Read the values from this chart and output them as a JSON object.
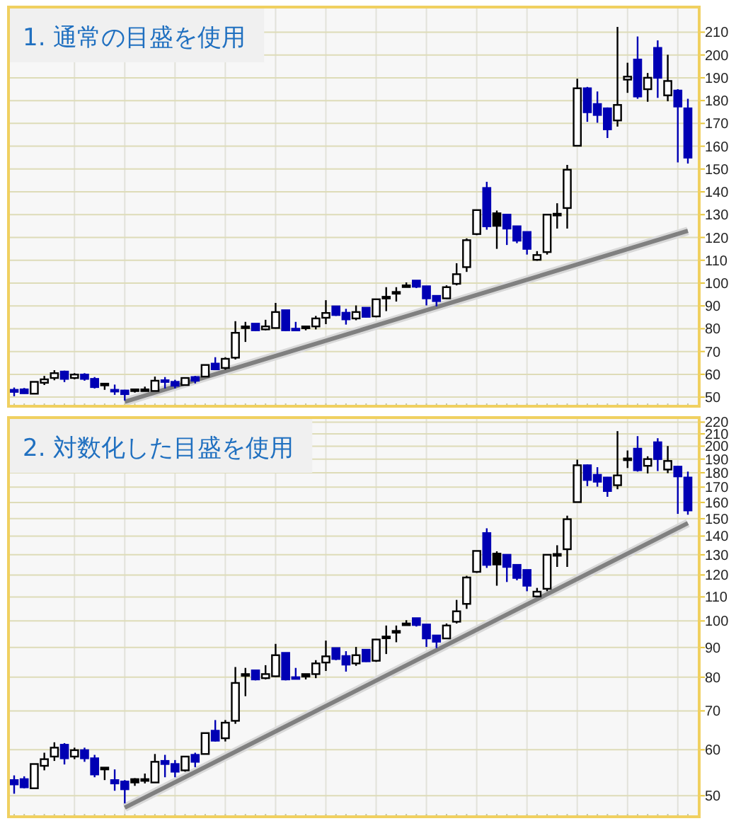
{
  "chart_data": [
    {
      "type": "candlestick",
      "title": "1. 通常の目盛を使用",
      "categories": [
        null,
        null,
        null,
        null,
        null,
        null,
        null,
        null,
        null,
        null,
        null,
        null,
        null,
        null,
        null,
        null,
        null,
        null,
        null,
        null,
        null,
        null,
        null,
        null,
        null,
        null,
        null,
        null,
        null,
        null,
        null,
        null,
        null,
        null,
        null,
        null,
        null,
        null,
        null,
        null,
        null,
        null,
        null,
        null,
        null,
        null,
        null,
        null,
        null,
        null,
        null,
        null,
        null,
        null,
        null,
        null,
        null,
        null,
        null,
        null,
        null,
        null,
        null,
        null,
        null,
        null,
        null,
        null
      ],
      "ohlc": [
        [
          53.2,
          54.2,
          50.4,
          52.3
        ],
        [
          53.4,
          54,
          51.5,
          51.7
        ],
        [
          51.5,
          56.7,
          51.5,
          56.7
        ],
        [
          56.3,
          59.3,
          55.3,
          57.8
        ],
        [
          58.4,
          61.8,
          57.4,
          60.5
        ],
        [
          61.2,
          61.6,
          56.6,
          58
        ],
        [
          58.4,
          60.5,
          57.8,
          59.9
        ],
        [
          59.9,
          60.5,
          57.2,
          58
        ],
        [
          58,
          58.8,
          53.8,
          54.4
        ],
        [
          55.9,
          55.9,
          53.2,
          55.5
        ],
        [
          53.2,
          55.5,
          51,
          52.5
        ],
        [
          52.9,
          53.2,
          48.5,
          51.3
        ],
        [
          53.4,
          53.6,
          52,
          52.7
        ],
        [
          53.4,
          54.6,
          52.5,
          53.2
        ],
        [
          52.7,
          59,
          52.7,
          57.2
        ],
        [
          57.4,
          58.8,
          53.8,
          56.7
        ],
        [
          56.7,
          57.6,
          53.8,
          55
        ],
        [
          55.3,
          58.4,
          55,
          58.4
        ],
        [
          58.8,
          59.3,
          56,
          57.2
        ],
        [
          59,
          64.1,
          59,
          64.1
        ],
        [
          64.7,
          67.5,
          62,
          62.2
        ],
        [
          62.8,
          67.5,
          62,
          66.8
        ],
        [
          67.3,
          83.3,
          66.5,
          78.2
        ],
        [
          81,
          83,
          74.2,
          80.8
        ],
        [
          82.2,
          82.2,
          79,
          79.3
        ],
        [
          79.7,
          83.9,
          79.3,
          81
        ],
        [
          80.3,
          91.3,
          80,
          87.3
        ],
        [
          88.1,
          88.1,
          79,
          79.3
        ],
        [
          80,
          83,
          79.3,
          79.5
        ],
        [
          81,
          81,
          79.3,
          80.2
        ],
        [
          81,
          85.6,
          79.7,
          84.5
        ],
        [
          84.8,
          92.5,
          82,
          86.9
        ],
        [
          89.8,
          89.8,
          85.6,
          86
        ],
        [
          87,
          88.7,
          81.8,
          84.1
        ],
        [
          84.5,
          90.2,
          83.7,
          87.3
        ],
        [
          89.2,
          89.2,
          85,
          85.2
        ],
        [
          85.4,
          93.1,
          85,
          92.9
        ],
        [
          94,
          98.2,
          87.7,
          94
        ],
        [
          96.1,
          98.2,
          91.9,
          96.1
        ],
        [
          99,
          100.3,
          98.4,
          98.6
        ],
        [
          101.1,
          101.1,
          97.8,
          98.4
        ],
        [
          98.6,
          98.6,
          90.2,
          93.3
        ],
        [
          94.4,
          94.6,
          89.8,
          92.1
        ],
        [
          93.3,
          99,
          93.1,
          98.2
        ],
        [
          99.7,
          108.7,
          99,
          103.9
        ],
        [
          107,
          119.6,
          104.9,
          118.8
        ],
        [
          121.5,
          132,
          121,
          132
        ],
        [
          141.7,
          144.4,
          123.4,
          124.9
        ],
        [
          130.6,
          131.8,
          115,
          125.1
        ],
        [
          130,
          130,
          116.7,
          123.9
        ],
        [
          124.9,
          124.9,
          117.5,
          118.6
        ],
        [
          122.4,
          122.4,
          112.5,
          115
        ],
        [
          110.2,
          114,
          109.8,
          112.3
        ],
        [
          113.6,
          130,
          112.5,
          130
        ],
        [
          130.4,
          135,
          123.9,
          130.4
        ],
        [
          132.9,
          151.8,
          123.9,
          149.7
        ],
        [
          160.2,
          189.6,
          160.2,
          185.4
        ],
        [
          185.4,
          186,
          170.7,
          174.9
        ],
        [
          178.5,
          184,
          170.3,
          173.7
        ],
        [
          176.6,
          177,
          163.6,
          167.4
        ],
        [
          171.3,
          212.3,
          168.6,
          178.1
        ],
        [
          189.2,
          196.6,
          183.4,
          190.5
        ],
        [
          198,
          208.1,
          180.8,
          181.8
        ],
        [
          185,
          192.1,
          179.5,
          190
        ],
        [
          203.1,
          206.4,
          181.2,
          190
        ],
        [
          182.3,
          200.1,
          179.7,
          188.6
        ],
        [
          184.4,
          185,
          152.9,
          177.4
        ],
        [
          176.6,
          180.8,
          152.4,
          155
        ]
      ],
      "colors": [
        "#0000b4",
        "#0000b4",
        "#ffffff",
        "#ffffff",
        "#ffffff",
        "#0000b4",
        "#ffffff",
        "#0000b4",
        "#0000b4",
        "#000000",
        "#0000b4",
        "#0000b4",
        "#000000",
        "#000000",
        "#ffffff",
        "#0000b4",
        "#0000b4",
        "#ffffff",
        "#0000b4",
        "#ffffff",
        "#0000b4",
        "#ffffff",
        "#ffffff",
        "#000000",
        "#0000b4",
        "#ffffff",
        "#ffffff",
        "#0000b4",
        "#0000b4",
        "#000000",
        "#ffffff",
        "#ffffff",
        "#0000b4",
        "#0000b4",
        "#ffffff",
        "#0000b4",
        "#ffffff",
        "#000000",
        "#000000",
        "#000000",
        "#0000b4",
        "#0000b4",
        "#0000b4",
        "#ffffff",
        "#ffffff",
        "#ffffff",
        "#ffffff",
        "#0000b4",
        "#000000",
        "#0000b4",
        "#0000b4",
        "#0000b4",
        "#ffffff",
        "#ffffff",
        "#000000",
        "#ffffff",
        "#ffffff",
        "#0000b4",
        "#0000b4",
        "#0000b4",
        "#ffffff",
        "#ffffff",
        "#0000b4",
        "#ffffff",
        "#0000b4",
        "#ffffff",
        "#0000b4",
        "#0000b4"
      ],
      "series": [
        {
          "type": "line",
          "values": [
            null,
            null,
            null,
            null,
            null,
            null,
            null,
            null,
            null,
            null,
            null,
            48,
            null,
            null,
            null,
            null,
            null,
            null,
            null,
            null,
            null,
            null,
            null,
            null,
            null,
            null,
            null,
            null,
            null,
            null,
            null,
            null,
            null,
            null,
            null,
            null,
            null,
            null,
            null,
            null,
            null,
            null,
            null,
            null,
            null,
            null,
            null,
            null,
            null,
            null,
            null,
            null,
            null,
            null,
            null,
            null,
            null,
            null,
            null,
            null,
            null,
            null,
            null,
            null,
            null,
            null,
            null,
            122.9
          ],
          "color": "#808080"
        }
      ],
      "ylim": [
        46,
        221
      ],
      "yticks": [
        50,
        60,
        70,
        80,
        90,
        100,
        110,
        120,
        130,
        140,
        150,
        160,
        170,
        180,
        190,
        200,
        210
      ],
      "grid": true,
      "tick_labels": "y"
    },
    {
      "type": "candlestick",
      "title": "2. 対数化した目盛を使用",
      "categories": [
        null,
        null,
        null,
        null,
        null,
        null,
        null,
        null,
        null,
        null,
        null,
        null,
        null,
        null,
        null,
        null,
        null,
        null,
        null,
        null,
        null,
        null,
        null,
        null,
        null,
        null,
        null,
        null,
        null,
        null,
        null,
        null,
        null,
        null,
        null,
        null,
        null,
        null,
        null,
        null,
        null,
        null,
        null,
        null,
        null,
        null,
        null,
        null,
        null,
        null,
        null,
        null,
        null,
        null,
        null,
        null,
        null,
        null,
        null,
        null,
        null,
        null,
        null,
        null,
        null,
        null,
        null,
        null
      ],
      "ohlc": [
        [
          53.2,
          54.2,
          50.4,
          52.3
        ],
        [
          53.4,
          54,
          51.5,
          51.7
        ],
        [
          51.5,
          56.7,
          51.5,
          56.7
        ],
        [
          56.3,
          59.3,
          55.3,
          57.8
        ],
        [
          58.4,
          61.8,
          57.4,
          60.5
        ],
        [
          61.2,
          61.6,
          56.6,
          58
        ],
        [
          58.4,
          60.5,
          57.8,
          59.9
        ],
        [
          59.9,
          60.5,
          57.2,
          58
        ],
        [
          58,
          58.8,
          53.8,
          54.4
        ],
        [
          55.9,
          55.9,
          53.2,
          55.5
        ],
        [
          53.2,
          55.5,
          51,
          52.5
        ],
        [
          52.9,
          53.2,
          48.5,
          51.3
        ],
        [
          53.4,
          53.6,
          52,
          52.7
        ],
        [
          53.4,
          54.6,
          52.5,
          53.2
        ],
        [
          52.7,
          59,
          52.7,
          57.2
        ],
        [
          57.4,
          58.8,
          53.8,
          56.7
        ],
        [
          56.7,
          57.6,
          53.8,
          55
        ],
        [
          55.3,
          58.4,
          55,
          58.4
        ],
        [
          58.8,
          59.3,
          56,
          57.2
        ],
        [
          59,
          64.1,
          59,
          64.1
        ],
        [
          64.7,
          67.5,
          62,
          62.2
        ],
        [
          62.8,
          67.5,
          62,
          66.8
        ],
        [
          67.3,
          83.3,
          66.5,
          78.2
        ],
        [
          81,
          83,
          74.2,
          80.8
        ],
        [
          82.2,
          82.2,
          79,
          79.3
        ],
        [
          79.7,
          83.9,
          79.3,
          81
        ],
        [
          80.3,
          91.3,
          80,
          87.3
        ],
        [
          88.1,
          88.1,
          79,
          79.3
        ],
        [
          80,
          83,
          79.3,
          79.5
        ],
        [
          81,
          81,
          79.3,
          80.2
        ],
        [
          81,
          85.6,
          79.7,
          84.5
        ],
        [
          84.8,
          92.5,
          82,
          86.9
        ],
        [
          89.8,
          89.8,
          85.6,
          86
        ],
        [
          87,
          88.7,
          81.8,
          84.1
        ],
        [
          84.5,
          90.2,
          83.7,
          87.3
        ],
        [
          89.2,
          89.2,
          85,
          85.2
        ],
        [
          85.4,
          93.1,
          85,
          92.9
        ],
        [
          94,
          98.2,
          87.7,
          94
        ],
        [
          96.1,
          98.2,
          91.9,
          96.1
        ],
        [
          99,
          100.3,
          98.4,
          98.6
        ],
        [
          101.1,
          101.1,
          97.8,
          98.4
        ],
        [
          98.6,
          98.6,
          90.2,
          93.3
        ],
        [
          94.4,
          94.6,
          89.8,
          92.1
        ],
        [
          93.3,
          99,
          93.1,
          98.2
        ],
        [
          99.7,
          108.7,
          99,
          103.9
        ],
        [
          107,
          119.6,
          104.9,
          118.8
        ],
        [
          121.5,
          132,
          121,
          132
        ],
        [
          141.7,
          144.4,
          123.4,
          124.9
        ],
        [
          130.6,
          131.8,
          115,
          125.1
        ],
        [
          130,
          130,
          116.7,
          123.9
        ],
        [
          124.9,
          124.9,
          117.5,
          118.6
        ],
        [
          122.4,
          122.4,
          112.5,
          115
        ],
        [
          110.2,
          114,
          109.8,
          112.3
        ],
        [
          113.6,
          130,
          112.5,
          130
        ],
        [
          130.4,
          135,
          123.9,
          130.4
        ],
        [
          132.9,
          151.8,
          123.9,
          149.7
        ],
        [
          160.2,
          189.6,
          160.2,
          185.4
        ],
        [
          185.4,
          186,
          170.7,
          174.9
        ],
        [
          178.5,
          184,
          170.3,
          173.7
        ],
        [
          176.6,
          177,
          163.6,
          167.4
        ],
        [
          171.3,
          212.3,
          168.6,
          178.1
        ],
        [
          189.2,
          196.6,
          183.4,
          190.5
        ],
        [
          198,
          208.1,
          180.8,
          181.8
        ],
        [
          185,
          192.1,
          179.5,
          190
        ],
        [
          203.1,
          206.4,
          181.2,
          190
        ],
        [
          182.3,
          200.1,
          179.7,
          188.6
        ],
        [
          184.4,
          185,
          152.9,
          177.4
        ],
        [
          176.6,
          180.8,
          152.4,
          155
        ]
      ],
      "colors": [
        "#0000b4",
        "#0000b4",
        "#ffffff",
        "#ffffff",
        "#ffffff",
        "#0000b4",
        "#ffffff",
        "#0000b4",
        "#0000b4",
        "#000000",
        "#0000b4",
        "#0000b4",
        "#000000",
        "#000000",
        "#ffffff",
        "#0000b4",
        "#0000b4",
        "#ffffff",
        "#0000b4",
        "#ffffff",
        "#0000b4",
        "#ffffff",
        "#ffffff",
        "#000000",
        "#0000b4",
        "#ffffff",
        "#ffffff",
        "#0000b4",
        "#0000b4",
        "#000000",
        "#ffffff",
        "#ffffff",
        "#0000b4",
        "#0000b4",
        "#ffffff",
        "#0000b4",
        "#ffffff",
        "#000000",
        "#000000",
        "#000000",
        "#0000b4",
        "#0000b4",
        "#0000b4",
        "#ffffff",
        "#ffffff",
        "#ffffff",
        "#ffffff",
        "#0000b4",
        "#000000",
        "#0000b4",
        "#0000b4",
        "#0000b4",
        "#ffffff",
        "#ffffff",
        "#000000",
        "#ffffff",
        "#ffffff",
        "#0000b4",
        "#0000b4",
        "#0000b4",
        "#ffffff",
        "#ffffff",
        "#0000b4",
        "#ffffff",
        "#0000b4",
        "#ffffff",
        "#0000b4",
        "#0000b4"
      ],
      "series": [
        {
          "type": "line",
          "values": [
            null,
            null,
            null,
            null,
            null,
            null,
            null,
            null,
            null,
            null,
            null,
            47.7,
            null,
            null,
            null,
            null,
            null,
            null,
            null,
            null,
            null,
            null,
            null,
            null,
            null,
            null,
            null,
            null,
            null,
            null,
            null,
            null,
            null,
            null,
            null,
            null,
            null,
            null,
            null,
            null,
            null,
            null,
            null,
            null,
            null,
            null,
            null,
            null,
            null,
            null,
            null,
            null,
            null,
            null,
            null,
            null,
            null,
            null,
            null,
            null,
            null,
            null,
            null,
            null,
            null,
            null,
            null,
            147.4
          ],
          "color": "#808080"
        }
      ],
      "ylim": [
        46,
        224
      ],
      "yticks": [
        50,
        60,
        70,
        80,
        90,
        100,
        110,
        120,
        130,
        140,
        150,
        160,
        170,
        180,
        190,
        200,
        210,
        220
      ],
      "log": "y",
      "grid": true,
      "tick_labels": "y"
    }
  ]
}
